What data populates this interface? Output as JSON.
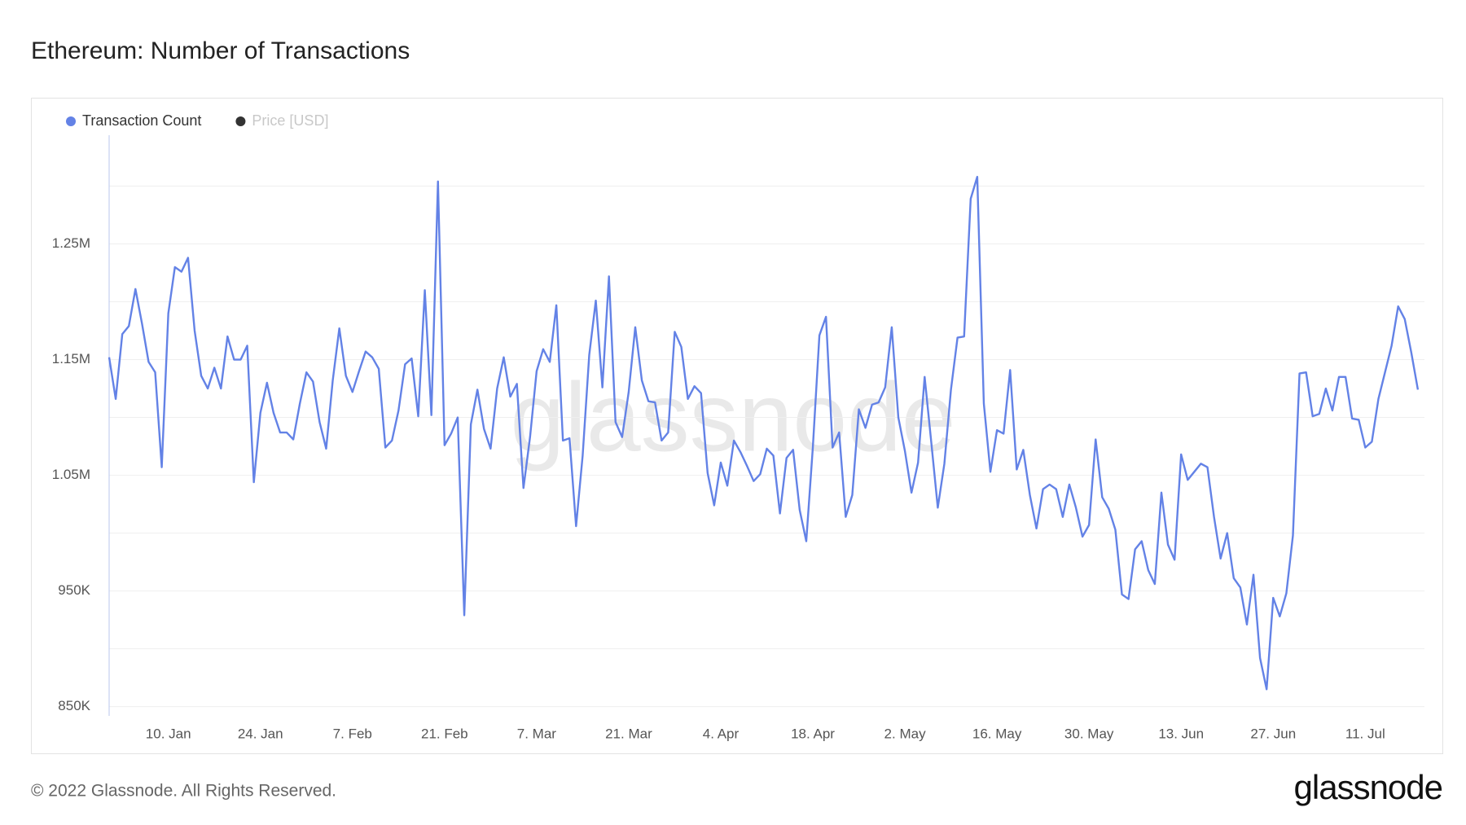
{
  "chart_data": {
    "type": "line",
    "title": "Ethereum: Number of Transactions",
    "watermark": "glassnode",
    "footer": "© 2022 Glassnode. All Rights Reserved.",
    "logo": "glassnode",
    "categories": [
      null,
      null,
      null,
      null,
      null,
      null,
      null,
      null,
      null,
      "10. Jan",
      null,
      null,
      null,
      null,
      null,
      null,
      null,
      null,
      null,
      null,
      null,
      null,
      null,
      "24. Jan",
      null,
      null,
      null,
      null,
      null,
      null,
      null,
      null,
      null,
      null,
      null,
      null,
      null,
      "7. Feb",
      null,
      null,
      null,
      null,
      null,
      null,
      null,
      null,
      null,
      null,
      null,
      null,
      null,
      "21. Feb",
      null,
      null,
      null,
      null,
      null,
      null,
      null,
      null,
      null,
      null,
      null,
      null,
      null,
      "7. Mar",
      null,
      null,
      null,
      null,
      null,
      null,
      null,
      null,
      null,
      null,
      null,
      null,
      null,
      "21. Mar",
      null,
      null,
      null,
      null,
      null,
      null,
      null,
      null,
      null,
      null,
      null,
      null,
      null,
      "4. Apr",
      null,
      null,
      null,
      null,
      null,
      null,
      null,
      null,
      null,
      null,
      null,
      null,
      null,
      "18. Apr",
      null,
      null,
      null,
      null,
      null,
      null,
      null,
      null,
      null,
      null,
      null,
      null,
      null,
      "2. May",
      null,
      null,
      null,
      null,
      null,
      null,
      null,
      null,
      null,
      null,
      null,
      null,
      null,
      "16. May",
      null,
      null,
      null,
      null,
      null,
      null,
      null,
      null,
      null,
      null,
      null,
      null,
      null,
      "30. May",
      null,
      null,
      null,
      null,
      null,
      null,
      null,
      null,
      null,
      null,
      null,
      null,
      null,
      "13. Jun",
      null,
      null,
      null,
      null,
      null,
      null,
      null,
      null,
      null,
      null,
      null,
      null,
      null,
      "27. Jun",
      null,
      null,
      null,
      null,
      null,
      null,
      null,
      null,
      null,
      null,
      null,
      null,
      null,
      "11. Jul",
      null,
      null,
      null,
      null,
      null,
      null,
      null,
      null
    ],
    "series": [
      {
        "name": "Transaction Count",
        "color": "#6382e6",
        "values": [
          1152000,
          1116000,
          1172000,
          1179000,
          1211000,
          1181000,
          1148000,
          1139000,
          1057000,
          1190000,
          1230000,
          1226000,
          1238000,
          1175000,
          1136000,
          1125000,
          1143000,
          1125000,
          1170000,
          1150000,
          1150000,
          1162000,
          1044000,
          1104000,
          1130000,
          1104000,
          1087000,
          1087000,
          1081000,
          1112000,
          1139000,
          1131000,
          1096000,
          1073000,
          1132000,
          1177000,
          1136000,
          1122000,
          1140000,
          1157000,
          1152000,
          1142000,
          1074000,
          1080000,
          1106000,
          1146000,
          1151000,
          1101000,
          1210000,
          1102000,
          1304000,
          1076000,
          1086000,
          1100000,
          929000,
          1094000,
          1124000,
          1090000,
          1073000,
          1125000,
          1152000,
          1118000,
          1129000,
          1039000,
          1083000,
          1140000,
          1159000,
          1148000,
          1197000,
          1080000,
          1082000,
          1006000,
          1067000,
          1154000,
          1201000,
          1126000,
          1222000,
          1096000,
          1083000,
          1122000,
          1178000,
          1132000,
          1114000,
          1113000,
          1080000,
          1087000,
          1174000,
          1161000,
          1116000,
          1127000,
          1121000,
          1052000,
          1024000,
          1061000,
          1041000,
          1080000,
          1070000,
          1058000,
          1045000,
          1051000,
          1073000,
          1067000,
          1017000,
          1065000,
          1072000,
          1020000,
          993000,
          1074000,
          1171000,
          1187000,
          1074000,
          1087000,
          1014000,
          1033000,
          1107000,
          1091000,
          1111000,
          1113000,
          1126000,
          1178000,
          1100000,
          1071000,
          1035000,
          1061000,
          1135000,
          1079000,
          1022000,
          1060000,
          1124000,
          1169000,
          1170000,
          1289000,
          1308000,
          1112000,
          1053000,
          1089000,
          1086000,
          1141000,
          1055000,
          1072000,
          1033000,
          1004000,
          1038000,
          1042000,
          1038000,
          1014000,
          1042000,
          1022000,
          997000,
          1007000,
          1081000,
          1031000,
          1021000,
          1003000,
          947000,
          943000,
          986000,
          993000,
          968000,
          956000,
          1035000,
          990000,
          977000,
          1068000,
          1046000,
          1053000,
          1060000,
          1057000,
          1014000,
          978000,
          1000000,
          961000,
          953000,
          921000,
          964000,
          892000,
          865000,
          944000,
          928000,
          948000,
          998000,
          1138000,
          1139000,
          1101000,
          1103000,
          1125000,
          1106000,
          1135000,
          1135000,
          1099000,
          1098000,
          1074000,
          1079000,
          1116000,
          1139000,
          1162000,
          1196000,
          1185000,
          1156000,
          1124000
        ]
      }
    ],
    "hidden_series": [
      {
        "name": "Price [USD]",
        "color": "#333333"
      }
    ],
    "ylim": [
      842000,
      1344000
    ],
    "yticks": [
      {
        "value": 850000,
        "label": "850K"
      },
      {
        "value": 950000,
        "label": "950K"
      },
      {
        "value": 1050000,
        "label": "1.05M"
      },
      {
        "value": 1150000,
        "label": "1.15M"
      },
      {
        "value": 1250000,
        "label": "1.25M"
      }
    ],
    "ygrid": [
      900000,
      1000000,
      1100000,
      1200000,
      1300000
    ],
    "grid": true
  }
}
